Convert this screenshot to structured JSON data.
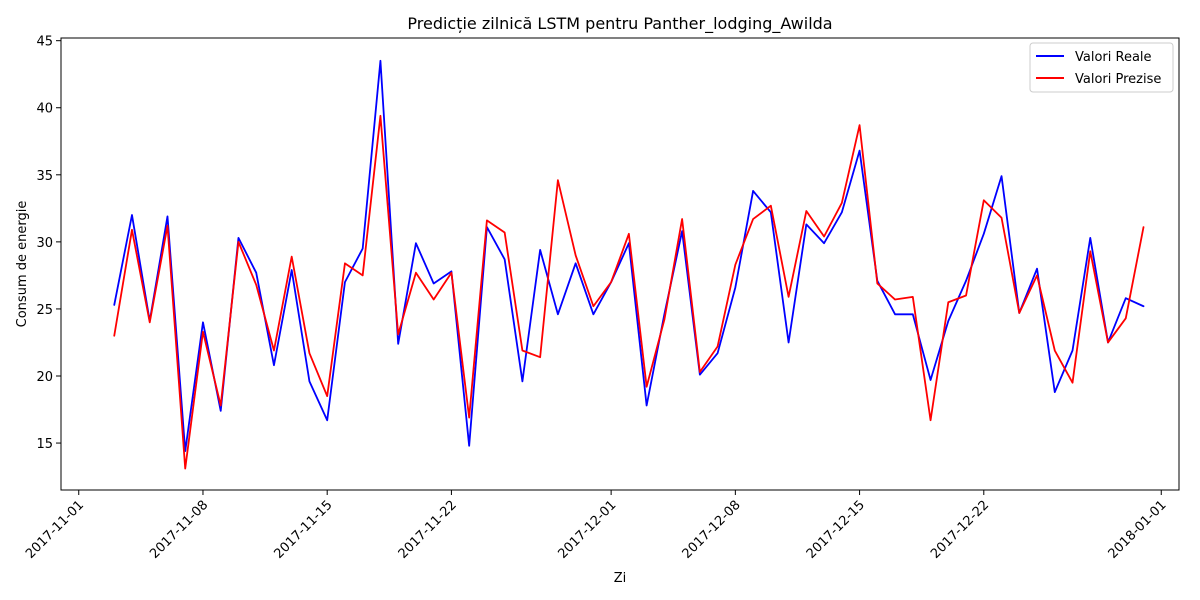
{
  "chart_data": {
    "type": "line",
    "title": "Predicție zilnică LSTM pentru Panther_lodging_Awilda",
    "xlabel": "Zi",
    "ylabel": "Consum de energie",
    "xlim": [
      "2017-10-31",
      "2018-01-02"
    ],
    "ylim": [
      11.5,
      45.2
    ],
    "x_ticks": [
      "2017-11-01",
      "2017-11-08",
      "2017-11-15",
      "2017-11-22",
      "2017-12-01",
      "2017-12-08",
      "2017-12-15",
      "2017-12-22",
      "2018-01-01"
    ],
    "y_ticks": [
      15,
      20,
      25,
      30,
      35,
      40,
      45
    ],
    "legend_position": "top-right",
    "grid": false,
    "x": [
      "2017-11-03",
      "2017-11-04",
      "2017-11-05",
      "2017-11-06",
      "2017-11-07",
      "2017-11-08",
      "2017-11-09",
      "2017-11-10",
      "2017-11-11",
      "2017-11-12",
      "2017-11-13",
      "2017-11-14",
      "2017-11-15",
      "2017-11-16",
      "2017-11-17",
      "2017-11-18",
      "2017-11-19",
      "2017-11-20",
      "2017-11-21",
      "2017-11-22",
      "2017-11-23",
      "2017-11-24",
      "2017-11-25",
      "2017-11-26",
      "2017-11-27",
      "2017-11-28",
      "2017-11-29",
      "2017-11-30",
      "2017-12-01",
      "2017-12-02",
      "2017-12-03",
      "2017-12-04",
      "2017-12-05",
      "2017-12-06",
      "2017-12-07",
      "2017-12-08",
      "2017-12-09",
      "2017-12-10",
      "2017-12-11",
      "2017-12-12",
      "2017-12-13",
      "2017-12-14",
      "2017-12-15",
      "2017-12-16",
      "2017-12-17",
      "2017-12-18",
      "2017-12-19",
      "2017-12-20",
      "2017-12-21",
      "2017-12-22",
      "2017-12-23",
      "2017-12-24",
      "2017-12-25",
      "2017-12-26",
      "2017-12-27",
      "2017-12-28",
      "2017-12-29",
      "2017-12-30",
      "2017-12-31"
    ],
    "series": [
      {
        "name": "Valori Reale",
        "color": "#0000ff",
        "values": [
          25.3,
          32.0,
          24.1,
          31.9,
          14.4,
          24.0,
          17.4,
          30.3,
          27.7,
          20.8,
          27.9,
          19.6,
          16.7,
          27.0,
          29.5,
          43.5,
          22.4,
          29.9,
          26.9,
          27.8,
          14.8,
          31.1,
          28.7,
          19.6,
          29.4,
          24.6,
          28.4,
          24.6,
          27.0,
          29.9,
          17.8,
          24.6,
          30.8,
          20.1,
          21.7,
          26.6,
          33.8,
          32.2,
          22.5,
          31.3,
          29.9,
          32.2,
          36.8,
          27.1,
          24.6,
          24.6,
          19.7,
          24.1,
          27.1,
          30.6,
          34.9,
          24.7,
          28.0,
          18.8,
          21.9,
          30.3,
          22.5,
          25.8,
          25.2
        ]
      },
      {
        "name": "Valori Prezise",
        "color": "#ff0000",
        "values": [
          23.0,
          30.9,
          24.0,
          31.2,
          13.1,
          23.3,
          17.8,
          30.0,
          26.8,
          21.9,
          28.9,
          21.7,
          18.5,
          28.4,
          27.5,
          39.4,
          23.1,
          27.7,
          25.7,
          27.7,
          16.9,
          31.6,
          30.7,
          21.9,
          21.4,
          34.6,
          29.0,
          25.2,
          27.0,
          30.6,
          19.2,
          24.2,
          31.7,
          20.3,
          22.2,
          28.3,
          31.7,
          32.7,
          25.9,
          32.3,
          30.4,
          32.9,
          38.7,
          26.9,
          25.7,
          25.9,
          16.7,
          25.5,
          26.0,
          33.1,
          31.8,
          24.7,
          27.5,
          21.9,
          19.5,
          29.3,
          22.5,
          24.3,
          31.1
        ]
      }
    ]
  }
}
